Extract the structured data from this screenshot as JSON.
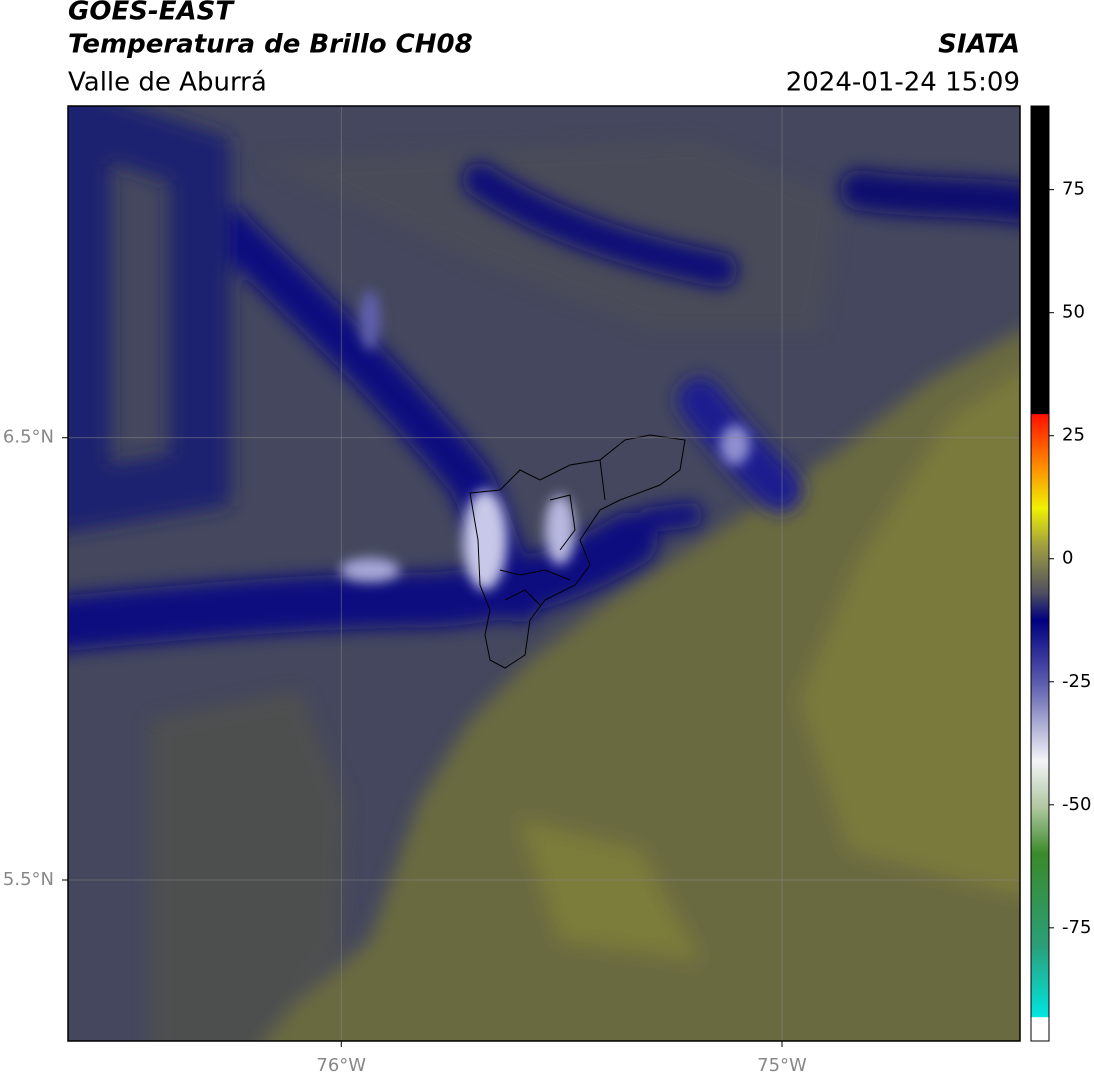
{
  "chart_data": {
    "type": "map",
    "title": "GOES-EAST",
    "subtitle": "Temperatura de Brillo CH08",
    "region": "Valle de Aburrá",
    "source": "SIATA",
    "timestamp": "2024-01-24 15:09",
    "xlim": [
      -76.62,
      -74.46
    ],
    "xticks": [
      {
        "value": -76,
        "label": "76°W"
      },
      {
        "value": -75,
        "label": "75°W"
      }
    ],
    "ylim": [
      5.136,
      7.25
    ],
    "yticks": [
      {
        "value": 6.5,
        "label": "6.5°N"
      },
      {
        "value": 5.5,
        "label": "5.5°N"
      }
    ],
    "grid": true,
    "colorbar": {
      "lim": [
        -98,
        92
      ],
      "ticks": [
        75,
        50,
        25,
        0,
        -25,
        -50,
        -75
      ]
    }
  }
}
